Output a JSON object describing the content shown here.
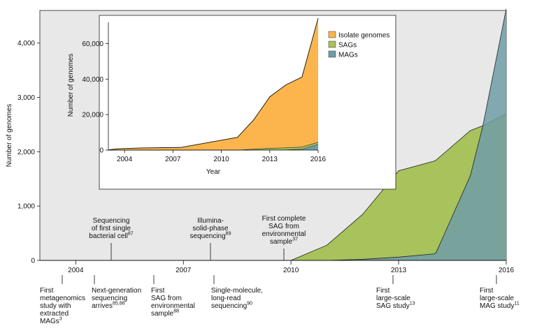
{
  "main_chart": {
    "ylabel": "Number of genomes",
    "yticks": [
      "0",
      "1,000",
      "2,000",
      "3,000",
      "4,000"
    ],
    "xticks": [
      "2004",
      "2007",
      "2010",
      "2013",
      "2016"
    ],
    "ylim": [
      0,
      4600
    ],
    "xlim": [
      2003,
      2016
    ],
    "grid": false,
    "colors": {
      "sags": "#a8c25c",
      "mags": "#6f9da7",
      "isolates": "#fbb54c",
      "background": "#e8e8e8"
    }
  },
  "timeline_top": [
    {
      "text": [
        "Sequencing",
        "of first single",
        "bacterial cell"
      ],
      "ref": "87",
      "year": 2005
    },
    {
      "text": [
        "Illumina-",
        "solid-phase",
        "sequencing"
      ],
      "ref": "89",
      "year": 2008
    },
    {
      "text": [
        "First complete",
        "SAG from",
        "environmental",
        "sample"
      ],
      "ref": "37",
      "year": 2010
    }
  ],
  "timeline_bottom": [
    {
      "text": [
        "First",
        "metagenomics",
        "study with",
        "extracted",
        "MAGs"
      ],
      "ref": "3",
      "year": 2004
    },
    {
      "text": [
        "Next-generation",
        "sequencing",
        "arrives"
      ],
      "ref": "85,86",
      "year": 2005
    },
    {
      "text": [
        "First",
        "SAG from",
        "environmental",
        "sample"
      ],
      "ref": "88",
      "year": 2007
    },
    {
      "text": [
        "Single-molecule,",
        "long-read",
        "sequencing"
      ],
      "ref": "90",
      "year": 2008
    },
    {
      "text": [
        "First",
        "large-scale",
        "SAG study"
      ],
      "ref": "13",
      "year": 2013
    },
    {
      "text": [
        "First",
        "large-scale",
        "MAG study"
      ],
      "ref": "11",
      "year": 2016
    }
  ],
  "inset": {
    "xlabel": "Year",
    "ylabel": "Number of genomes",
    "yticks": [
      "0",
      "20,000",
      "40,000",
      "60,000"
    ],
    "xticks": [
      "2004",
      "2007",
      "2010",
      "2013",
      "2016"
    ],
    "legend": [
      "Isolate genomes",
      "SAGs",
      "MAGs"
    ],
    "legend_position": "top-right"
  },
  "chart_data": [
    {
      "type": "area",
      "x": [
        2010,
        2011,
        2012,
        2013,
        2014,
        2014.05,
        2015,
        2015.35,
        2016
      ],
      "series": [
        {
          "name": "SAGs",
          "values": [
            0,
            280,
            850,
            1650,
            1830,
            1850,
            2390,
            2480,
            2700
          ]
        },
        {
          "name": "MAGs",
          "values": [
            0,
            0,
            20,
            60,
            120,
            150,
            1560,
            2480,
            4630
          ]
        }
      ],
      "xlabel": "",
      "ylabel": "Number of genomes",
      "xlim": [
        2003,
        2016
      ],
      "ylim": [
        0,
        4600
      ]
    },
    {
      "type": "area",
      "stacked": true,
      "x": [
        2003,
        2003.5,
        2005,
        2007.5,
        2011,
        2012,
        2013,
        2014,
        2015,
        2016
      ],
      "series": [
        {
          "name": "Isolate genomes",
          "values": [
            100,
            700,
            1200,
            1500,
            7200,
            16500,
            29000,
            35500,
            39500,
            70000
          ]
        },
        {
          "name": "SAGs",
          "values": [
            0,
            0,
            0,
            0,
            0,
            500,
            900,
            1100,
            1200,
            1200
          ]
        },
        {
          "name": "MAGs",
          "values": [
            0,
            0,
            0,
            0,
            0,
            0,
            100,
            150,
            500,
            3200
          ]
        }
      ],
      "xlabel": "Year",
      "ylabel": "Number of genomes",
      "xlim": [
        2003,
        2016
      ],
      "ylim": [
        0,
        72000
      ]
    }
  ]
}
